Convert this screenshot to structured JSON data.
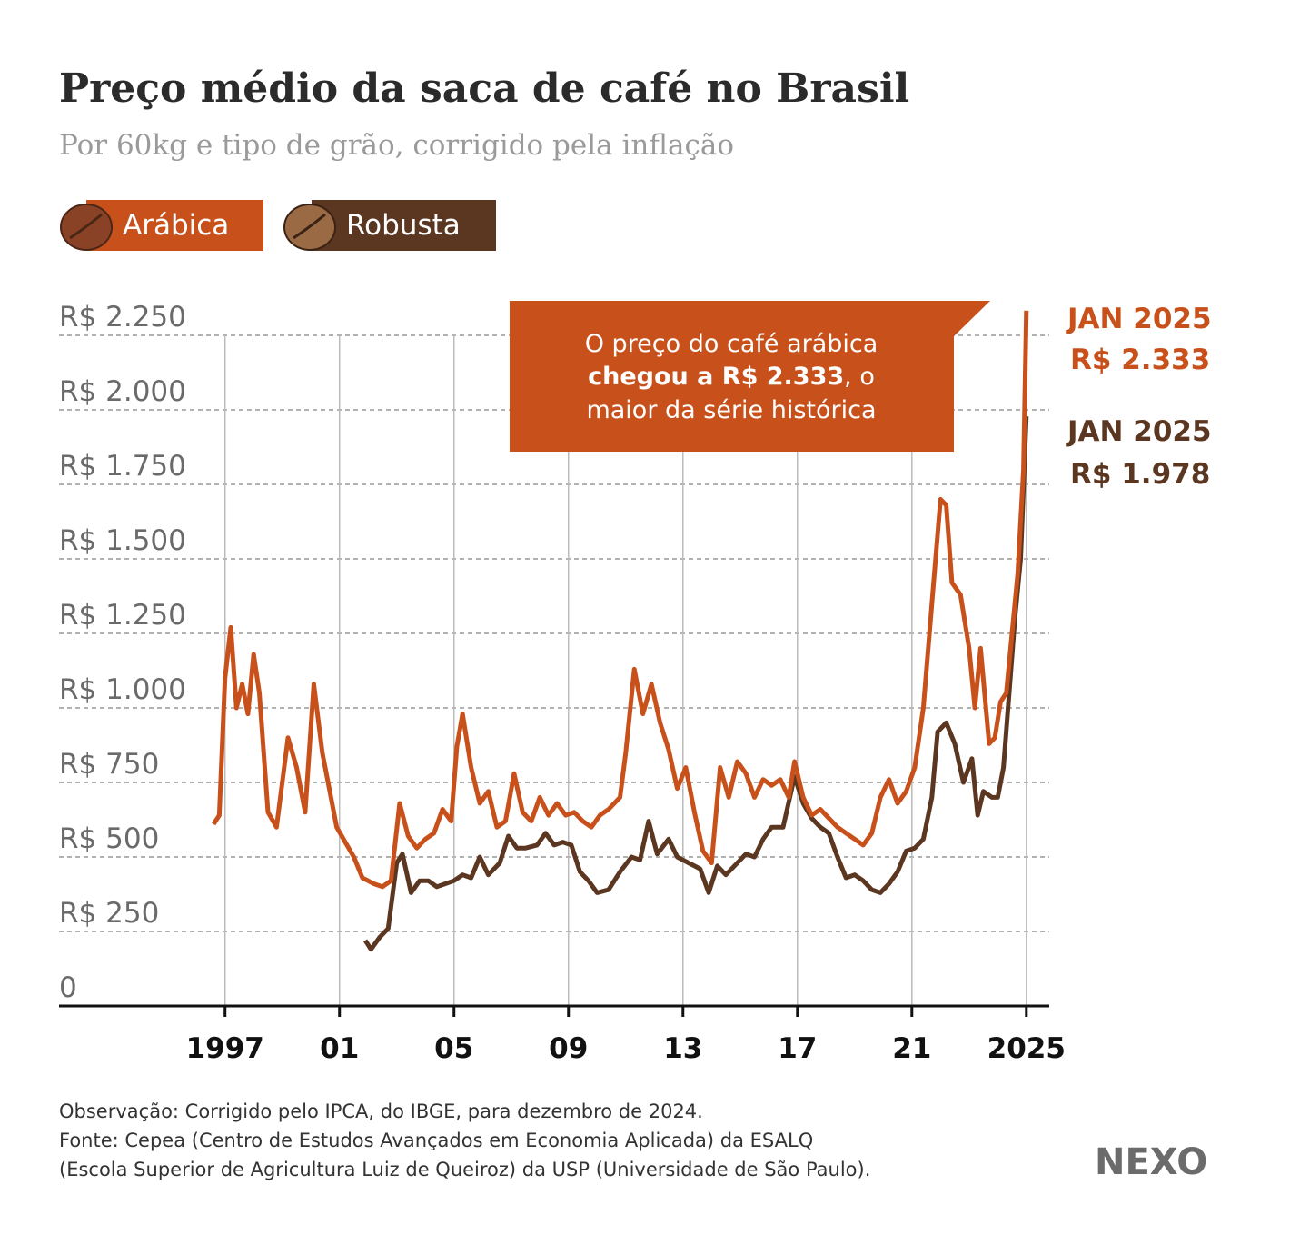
{
  "chart_data": {
    "type": "line",
    "title": "Preço médio da saca de café no Brasil",
    "subtitle": "Por 60kg e tipo de grão, corrigido pela inflação",
    "xlim": [
      1991.2,
      2025.8
    ],
    "xticks": [
      {
        "value": 1997,
        "label": "1997"
      },
      {
        "value": 2001,
        "label": "01"
      },
      {
        "value": 2005,
        "label": "05"
      },
      {
        "value": 2009,
        "label": "09"
      },
      {
        "value": 2013,
        "label": "13"
      },
      {
        "value": 2017,
        "label": "17"
      },
      {
        "value": 2021,
        "label": "21"
      },
      {
        "value": 2025,
        "label": "2025"
      }
    ],
    "ylim": [
      0,
      2250
    ],
    "yticks": [
      0,
      {
        "value": 250,
        "label": "R$ 250"
      },
      {
        "value": 500,
        "label": "R$ 500"
      },
      {
        "value": 750,
        "label": "R$ 750"
      },
      {
        "value": 1000,
        "label": "R$ 1.000"
      },
      {
        "value": 1250,
        "label": "R$ 1.250"
      },
      {
        "value": 1500,
        "label": "R$ 1.500"
      },
      {
        "value": 1750,
        "label": "R$ 1.750"
      },
      {
        "value": 2000,
        "label": "R$ 2.000"
      },
      {
        "value": 2250,
        "label": "R$ 2.250"
      }
    ],
    "grid": true,
    "series": [
      {
        "name": "Arábica",
        "color": "#c8511b",
        "end_label": {
          "date": "JAN 2025",
          "value": "R$ 2.333"
        },
        "x": [
          1996.6,
          1996.8,
          1997.0,
          1997.2,
          1997.4,
          1997.6,
          1997.8,
          1998.0,
          1998.2,
          1998.5,
          1998.8,
          1999.2,
          1999.5,
          1999.8,
          2000.1,
          2000.4,
          2000.7,
          2000.9,
          2001.2,
          2001.5,
          2001.8,
          2002.2,
          2002.5,
          2002.8,
          2003.1,
          2003.4,
          2003.7,
          2004.0,
          2004.3,
          2004.6,
          2004.9,
          2005.1,
          2005.3,
          2005.6,
          2005.9,
          2006.2,
          2006.5,
          2006.8,
          2007.1,
          2007.4,
          2007.7,
          2008.0,
          2008.3,
          2008.6,
          2008.9,
          2009.2,
          2009.5,
          2009.8,
          2010.1,
          2010.4,
          2010.8,
          2011.0,
          2011.3,
          2011.6,
          2011.9,
          2012.2,
          2012.5,
          2012.8,
          2013.1,
          2013.4,
          2013.7,
          2014.0,
          2014.3,
          2014.6,
          2014.9,
          2015.2,
          2015.5,
          2015.8,
          2016.1,
          2016.4,
          2016.7,
          2016.9,
          2017.2,
          2017.5,
          2017.8,
          2018.1,
          2018.4,
          2018.7,
          2019.0,
          2019.3,
          2019.6,
          2019.9,
          2020.2,
          2020.5,
          2020.8,
          2021.1,
          2021.4,
          2021.7,
          2022.0,
          2022.2,
          2022.4,
          2022.7,
          2023.0,
          2023.2,
          2023.4,
          2023.7,
          2023.9,
          2024.1,
          2024.3,
          2024.5,
          2024.7,
          2024.9,
          2025.0
        ],
        "values": [
          610,
          640,
          1100,
          1270,
          1000,
          1080,
          980,
          1180,
          1050,
          650,
          600,
          900,
          800,
          650,
          1080,
          850,
          700,
          600,
          550,
          500,
          430,
          410,
          400,
          420,
          680,
          570,
          530,
          560,
          580,
          660,
          620,
          870,
          980,
          800,
          680,
          720,
          600,
          620,
          780,
          650,
          620,
          700,
          640,
          680,
          640,
          650,
          620,
          600,
          640,
          660,
          700,
          850,
          1130,
          980,
          1080,
          950,
          860,
          730,
          800,
          650,
          520,
          480,
          800,
          700,
          820,
          780,
          700,
          760,
          740,
          760,
          700,
          820,
          700,
          640,
          660,
          630,
          600,
          580,
          560,
          540,
          580,
          700,
          760,
          680,
          720,
          800,
          1000,
          1350,
          1700,
          1680,
          1420,
          1380,
          1200,
          1000,
          1200,
          880,
          900,
          1020,
          1050,
          1250,
          1450,
          1800,
          2333
        ]
      },
      {
        "name": "Robusta",
        "color": "#5b3620",
        "end_label": {
          "date": "JAN 2025",
          "value": "R$ 1.978"
        },
        "x": [
          2001.9,
          2002.1,
          2002.4,
          2002.7,
          2003.0,
          2003.2,
          2003.5,
          2003.8,
          2004.1,
          2004.4,
          2004.7,
          2005.0,
          2005.3,
          2005.6,
          2005.9,
          2006.2,
          2006.6,
          2006.9,
          2007.2,
          2007.5,
          2007.9,
          2008.2,
          2008.5,
          2008.8,
          2009.1,
          2009.4,
          2009.7,
          2010.0,
          2010.4,
          2010.8,
          2011.2,
          2011.5,
          2011.8,
          2012.1,
          2012.5,
          2012.8,
          2013.2,
          2013.6,
          2013.9,
          2014.2,
          2014.5,
          2014.8,
          2015.2,
          2015.5,
          2015.8,
          2016.1,
          2016.5,
          2016.9,
          2017.2,
          2017.5,
          2017.8,
          2018.1,
          2018.4,
          2018.7,
          2019.0,
          2019.3,
          2019.6,
          2019.9,
          2020.2,
          2020.5,
          2020.8,
          2021.1,
          2021.4,
          2021.7,
          2021.9,
          2022.2,
          2022.5,
          2022.8,
          2023.1,
          2023.3,
          2023.5,
          2023.8,
          2024.0,
          2024.2,
          2024.4,
          2024.6,
          2024.8,
          2025.0
        ],
        "values": [
          220,
          190,
          230,
          260,
          480,
          510,
          380,
          420,
          420,
          400,
          410,
          420,
          440,
          430,
          500,
          440,
          480,
          570,
          530,
          530,
          540,
          580,
          540,
          550,
          540,
          450,
          420,
          380,
          390,
          450,
          500,
          490,
          620,
          510,
          560,
          500,
          480,
          460,
          380,
          470,
          440,
          470,
          510,
          500,
          560,
          600,
          600,
          770,
          680,
          630,
          600,
          580,
          500,
          430,
          440,
          420,
          390,
          380,
          410,
          450,
          520,
          530,
          560,
          700,
          920,
          950,
          880,
          750,
          830,
          640,
          720,
          700,
          700,
          800,
          1050,
          1300,
          1500,
          1978
        ]
      }
    ],
    "annotation": {
      "parts": [
        "O preço do café arábica",
        "chegou a R$ 2.333",
        ", o",
        "maior da série histórica"
      ]
    },
    "note": "Observação: Corrigido pelo IPCA, do IBGE, para dezembro de 2024.",
    "source": [
      "Fonte: Cepea (Centro de Estudos Avançados em Economia Aplicada) da ESALQ",
      "(Escola Superior de Agricultura Luiz de Queiroz) da  USP (Universidade de São Paulo)."
    ],
    "logo": "NEXO"
  }
}
